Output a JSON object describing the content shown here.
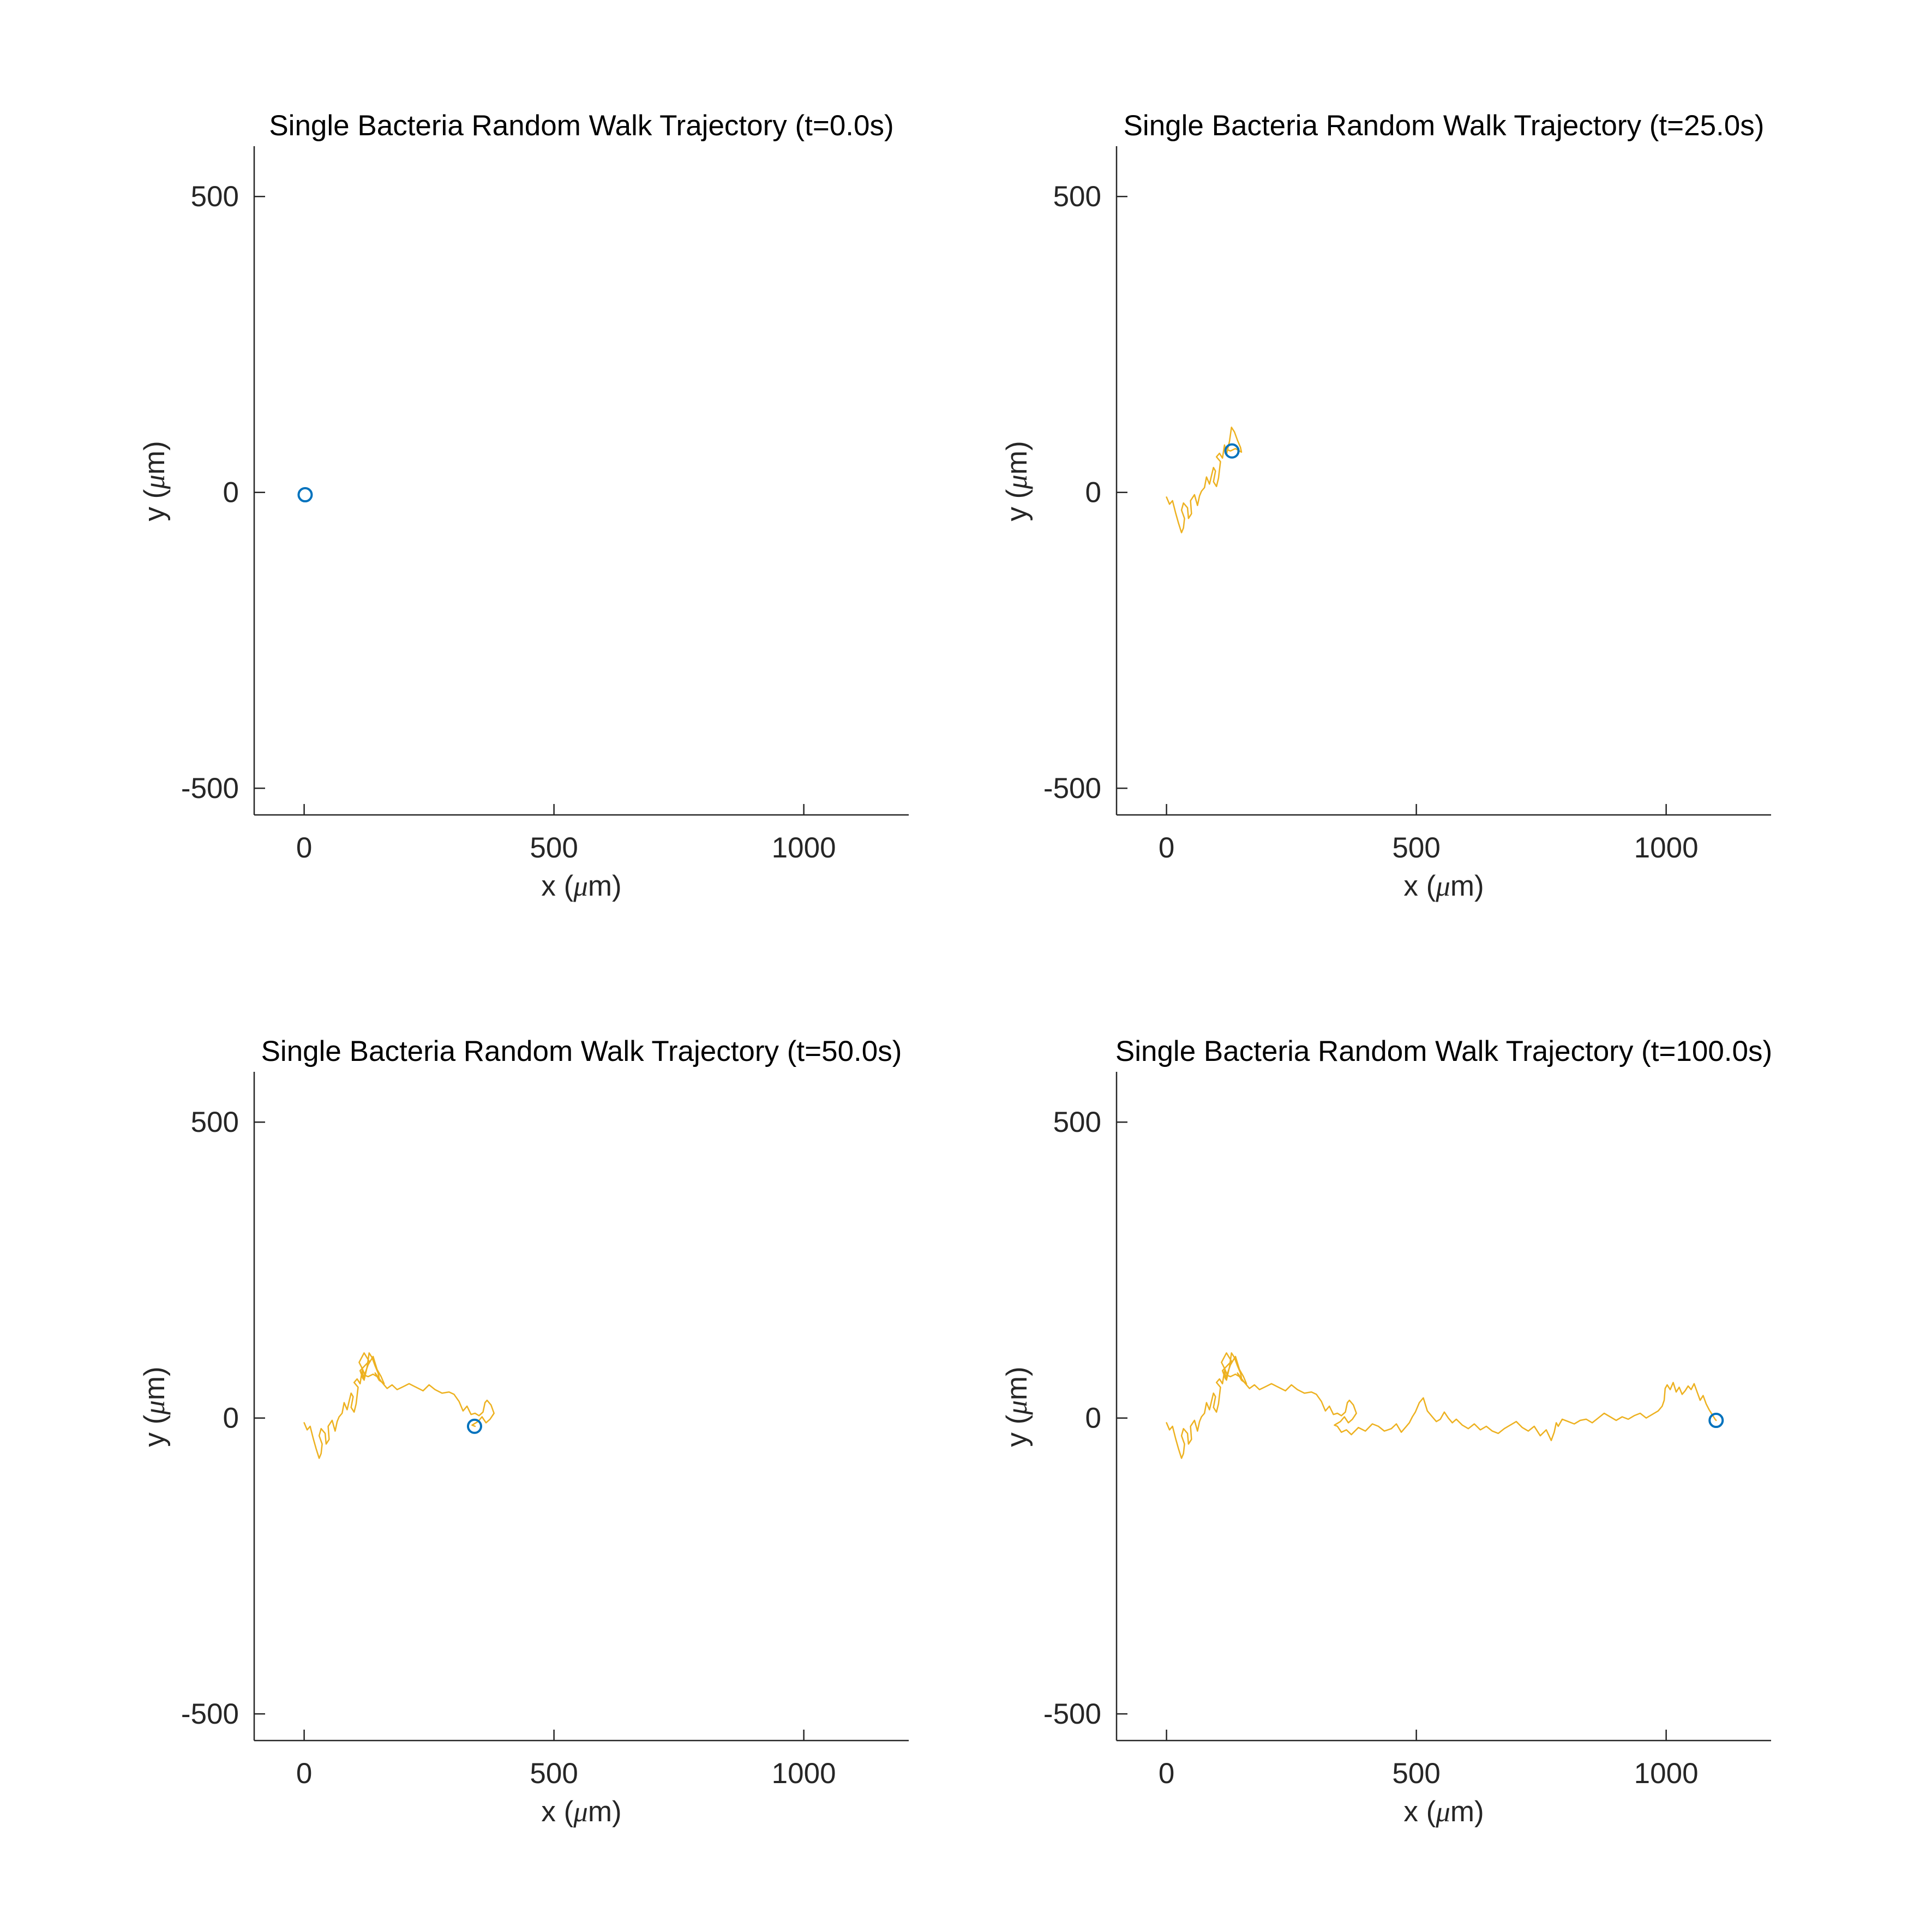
{
  "colors": {
    "trajectory": "#EDB120",
    "position_marker": "#0072BD",
    "axis": "#262626",
    "title": "#000000"
  },
  "chart_data": [
    {
      "type": "line",
      "title": "Single Bacteria Random Walk Trajectory (t=0.0s)",
      "xlabel": "x (μm)",
      "ylabel": "y (μm)",
      "xlim": [
        -100,
        1210
      ],
      "ylim": [
        -545,
        585
      ],
      "xticks": [
        0,
        500,
        1000
      ],
      "yticks": [
        -500,
        0,
        500
      ],
      "xtick_labels": [
        "0",
        "500",
        "1000"
      ],
      "ytick_labels": [
        "-500",
        "0",
        "500"
      ],
      "grid": false,
      "series": [
        {
          "kind": "trajectory",
          "x": [],
          "y": []
        },
        {
          "kind": "current-position",
          "x": [
            2
          ],
          "y": [
            -4
          ]
        }
      ]
    },
    {
      "type": "line",
      "title": "Single Bacteria Random Walk Trajectory (t=25.0s)",
      "xlabel": "x (μm)",
      "ylabel": "y (μm)",
      "xlim": [
        -100,
        1210
      ],
      "ylim": [
        -545,
        585
      ],
      "xticks": [
        0,
        500,
        1000
      ],
      "yticks": [
        -500,
        0,
        500
      ],
      "xtick_labels": [
        "0",
        "500",
        "1000"
      ],
      "ytick_labels": [
        "-500",
        "0",
        "500"
      ],
      "grid": false,
      "series": [
        {
          "kind": "trajectory",
          "x": [
            0,
            6,
            12,
            18,
            24,
            30,
            34,
            36,
            30,
            34,
            42,
            44,
            50,
            48,
            56,
            62,
            66,
            70,
            76,
            80,
            86,
            90,
            94,
            98,
            94,
            100,
            104,
            108,
            100,
            106,
            112,
            116,
            120,
            126,
            130,
            136,
            142,
            148,
            150,
            138,
            128,
            122
          ],
          "y": [
            -8,
            -20,
            -14,
            -34,
            -52,
            -68,
            -60,
            -44,
            -30,
            -18,
            -26,
            -44,
            -36,
            -14,
            -4,
            -22,
            -6,
            2,
            8,
            26,
            14,
            28,
            42,
            36,
            18,
            10,
            24,
            52,
            60,
            66,
            58,
            80,
            64,
            86,
            110,
            102,
            88,
            76,
            68,
            74,
            70,
            72
          ]
        },
        {
          "kind": "current-position",
          "x": [
            131
          ],
          "y": [
            70
          ]
        }
      ]
    },
    {
      "type": "line",
      "title": "Single Bacteria Random Walk Trajectory (t=50.0s)",
      "xlabel": "x (μm)",
      "ylabel": "y (μm)",
      "xlim": [
        -100,
        1210
      ],
      "ylim": [
        -545,
        585
      ],
      "xticks": [
        0,
        500,
        1000
      ],
      "yticks": [
        -500,
        0,
        500
      ],
      "xtick_labels": [
        "0",
        "500",
        "1000"
      ],
      "ytick_labels": [
        "-500",
        "0",
        "500"
      ],
      "grid": false,
      "series": [
        {
          "kind": "trajectory",
          "x": [
            0,
            6,
            12,
            18,
            24,
            30,
            34,
            36,
            30,
            34,
            42,
            44,
            50,
            48,
            56,
            62,
            66,
            70,
            76,
            80,
            86,
            90,
            94,
            98,
            94,
            100,
            104,
            108,
            100,
            106,
            112,
            116,
            120,
            126,
            130,
            136,
            142,
            148,
            150,
            138,
            128,
            122,
            116,
            110,
            120,
            130,
            112,
            118,
            128,
            138,
            146,
            154,
            160,
            150,
            142,
            156,
            166,
            176,
            186,
            196,
            210,
            224,
            238,
            250,
            262,
            276,
            290,
            300,
            310,
            318,
            326,
            334,
            342,
            350,
            358,
            362,
            366,
            374,
            380,
            372,
            364,
            356,
            348,
            340,
            336,
            342
          ],
          "y": [
            -8,
            -20,
            -14,
            -34,
            -52,
            -68,
            -60,
            -44,
            -30,
            -18,
            -26,
            -44,
            -36,
            -14,
            -4,
            -22,
            -6,
            2,
            8,
            26,
            14,
            28,
            42,
            36,
            18,
            10,
            24,
            52,
            60,
            66,
            58,
            80,
            64,
            86,
            110,
            102,
            88,
            76,
            68,
            74,
            70,
            72,
            84,
            94,
            110,
            96,
            80,
            66,
            90,
            104,
            82,
            70,
            58,
            64,
            76,
            60,
            50,
            56,
            48,
            52,
            58,
            52,
            46,
            56,
            48,
            42,
            44,
            40,
            28,
            12,
            20,
            6,
            8,
            4,
            10,
            26,
            30,
            22,
            8,
            -2,
            -8,
            2,
            -6,
            -10,
            -12,
            -14
          ]
        },
        {
          "kind": "current-position",
          "x": [
            341
          ],
          "y": [
            -14
          ]
        }
      ]
    },
    {
      "type": "line",
      "title": "Single Bacteria Random Walk Trajectory (t=100.0s)",
      "xlabel": "x (μm)",
      "ylabel": "y (μm)",
      "xlim": [
        -100,
        1210
      ],
      "ylim": [
        -545,
        585
      ],
      "xticks": [
        0,
        500,
        1000
      ],
      "yticks": [
        -500,
        0,
        500
      ],
      "xtick_labels": [
        "0",
        "500",
        "1000"
      ],
      "ytick_labels": [
        "-500",
        "0",
        "500"
      ],
      "grid": false,
      "series": [
        {
          "kind": "trajectory",
          "x": [
            0,
            6,
            12,
            18,
            24,
            30,
            34,
            36,
            30,
            34,
            42,
            44,
            50,
            48,
            56,
            62,
            66,
            70,
            76,
            80,
            86,
            90,
            94,
            98,
            94,
            100,
            104,
            108,
            100,
            106,
            112,
            116,
            120,
            126,
            130,
            136,
            142,
            148,
            150,
            138,
            128,
            122,
            116,
            110,
            120,
            130,
            112,
            118,
            128,
            138,
            146,
            154,
            160,
            150,
            142,
            156,
            166,
            176,
            186,
            196,
            210,
            224,
            238,
            250,
            262,
            276,
            290,
            300,
            310,
            318,
            326,
            334,
            342,
            350,
            358,
            362,
            366,
            374,
            380,
            372,
            364,
            356,
            348,
            340,
            336,
            342,
            350,
            360,
            370,
            384,
            398,
            412,
            424,
            436,
            450,
            460,
            470,
            480,
            486,
            492,
            498,
            506,
            514,
            522,
            530,
            540,
            548,
            556,
            564,
            572,
            580,
            592,
            604,
            616,
            628,
            640,
            652,
            664,
            676,
            688,
            700,
            712,
            724,
            736,
            748,
            760,
            770,
            776,
            780,
            784,
            792,
            804,
            816,
            828,
            840,
            852,
            864,
            876,
            888,
            900,
            912,
            924,
            936,
            948,
            960,
            972,
            984,
            992,
            996,
            998,
            1002,
            1008,
            1014,
            1020,
            1026,
            1032,
            1038,
            1044,
            1050,
            1056,
            1062,
            1068,
            1074,
            1080,
            1086,
            1092,
            1098,
            1100
          ],
          "y": [
            -8,
            -20,
            -14,
            -34,
            -52,
            -68,
            -60,
            -44,
            -30,
            -18,
            -26,
            -44,
            -36,
            -14,
            -4,
            -22,
            -6,
            2,
            8,
            26,
            14,
            28,
            42,
            36,
            18,
            10,
            24,
            52,
            60,
            66,
            58,
            80,
            64,
            86,
            110,
            102,
            88,
            76,
            68,
            74,
            70,
            72,
            84,
            94,
            110,
            96,
            80,
            66,
            90,
            104,
            82,
            70,
            58,
            64,
            76,
            60,
            50,
            56,
            48,
            52,
            58,
            52,
            46,
            56,
            48,
            42,
            44,
            40,
            28,
            12,
            20,
            6,
            8,
            4,
            10,
            26,
            30,
            22,
            8,
            -2,
            -8,
            2,
            -6,
            -10,
            -12,
            -14,
            -24,
            -20,
            -28,
            -16,
            -22,
            -10,
            -14,
            -22,
            -18,
            -10,
            -24,
            -14,
            -8,
            2,
            10,
            26,
            34,
            12,
            4,
            -6,
            -2,
            10,
            0,
            -8,
            -2,
            -12,
            -18,
            -10,
            -20,
            -14,
            -22,
            -26,
            -18,
            -12,
            -6,
            -16,
            -22,
            -14,
            -30,
            -20,
            -38,
            -24,
            -8,
            -14,
            -2,
            -6,
            -10,
            -4,
            -2,
            -8,
            0,
            8,
            2,
            -4,
            2,
            -2,
            4,
            8,
            0,
            6,
            12,
            20,
            30,
            50,
            56,
            48,
            60,
            44,
            52,
            40,
            46,
            54,
            48,
            58,
            44,
            30,
            38,
            24,
            14,
            6,
            -2,
            -4
          ]
        },
        {
          "kind": "current-position",
          "x": [
            1100
          ],
          "y": [
            -4
          ]
        }
      ]
    }
  ]
}
